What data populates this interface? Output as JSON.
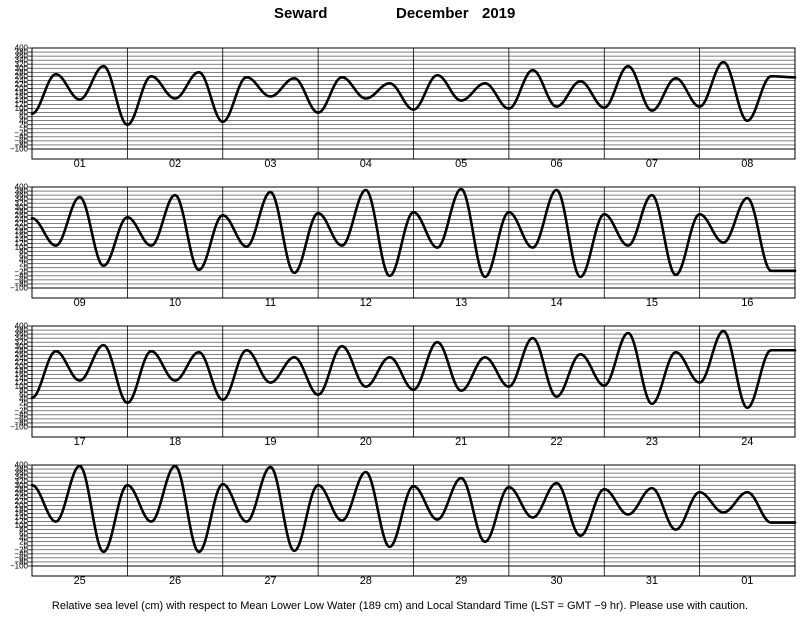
{
  "header": {
    "station": "Seward",
    "month": "December",
    "year": "2019"
  },
  "footnote": "Relative sea level (cm) with respect to Mean Lower Low Water (189 cm) and Local Standard Time (LST = GMT −9 hr). Please use with caution.",
  "chart_data": {
    "type": "line",
    "title": "",
    "xlabel": "",
    "ylabel": "",
    "ylim": [
      -100,
      400
    ],
    "y_ticks": [
      -100,
      -80,
      -60,
      -40,
      -20,
      0,
      20,
      40,
      60,
      80,
      100,
      120,
      140,
      160,
      180,
      200,
      220,
      240,
      260,
      280,
      300,
      320,
      340,
      360,
      380,
      400
    ],
    "y_tick_labels": [
      "−100",
      "−80",
      "−60",
      "−40",
      "−20",
      "0",
      "20",
      "40",
      "60",
      "80",
      "100",
      "120",
      "140",
      "160",
      "180",
      "200",
      "220",
      "240",
      "260",
      "280",
      "300",
      "320",
      "340",
      "360",
      "380",
      "400"
    ],
    "grid": true,
    "days_per_panel": 8,
    "x_unit": "day-of-month",
    "panels": [
      {
        "day_labels": [
          "01",
          "02",
          "03",
          "04",
          "05",
          "06",
          "07",
          "08"
        ],
        "series": {
          "x": [
            0.0,
            0.25,
            0.5,
            0.75,
            1.0,
            1.25,
            1.5,
            1.75,
            2.0,
            2.25,
            2.5,
            2.75,
            3.0,
            3.25,
            3.5,
            3.75,
            4.0,
            4.25,
            4.5,
            4.75,
            5.0,
            5.25,
            5.5,
            5.75,
            6.0,
            6.25,
            6.5,
            6.75,
            7.0,
            7.25,
            7.5,
            7.75,
            8.0
          ],
          "y": [
            75,
            270,
            145,
            310,
            20,
            260,
            150,
            280,
            35,
            255,
            160,
            250,
            80,
            255,
            150,
            225,
            95,
            265,
            140,
            225,
            100,
            290,
            110,
            235,
            105,
            310,
            90,
            250,
            110,
            330,
            40,
            260,
            255
          ]
        }
      },
      {
        "day_labels": [
          "09",
          "10",
          "11",
          "12",
          "13",
          "14",
          "15",
          "16"
        ],
        "series": {
          "x": [
            0.0,
            0.25,
            0.5,
            0.75,
            1.0,
            1.25,
            1.5,
            1.75,
            2.0,
            2.25,
            2.5,
            2.75,
            3.0,
            3.25,
            3.5,
            3.75,
            4.0,
            4.25,
            4.5,
            4.75,
            5.0,
            5.25,
            5.5,
            5.75,
            6.0,
            6.25,
            6.5,
            6.75,
            7.0,
            7.25,
            7.5,
            7.75,
            8.0
          ],
          "y": [
            245,
            110,
            350,
            10,
            250,
            110,
            360,
            -10,
            260,
            105,
            375,
            -25,
            270,
            110,
            385,
            -40,
            275,
            100,
            390,
            -45,
            275,
            100,
            385,
            -45,
            265,
            110,
            360,
            -35,
            265,
            125,
            345,
            -15,
            -15
          ]
        }
      },
      {
        "day_labels": [
          "17",
          "18",
          "19",
          "20",
          "21",
          "22",
          "23",
          "24"
        ],
        "series": {
          "x": [
            0.0,
            0.25,
            0.5,
            0.75,
            1.0,
            1.25,
            1.5,
            1.75,
            2.0,
            2.25,
            2.5,
            2.75,
            3.0,
            3.25,
            3.5,
            3.75,
            4.0,
            4.25,
            4.5,
            4.75,
            5.0,
            5.25,
            5.5,
            5.75,
            6.0,
            6.25,
            6.5,
            6.75,
            7.0,
            7.25,
            7.5,
            7.75,
            8.0
          ],
          "y": [
            45,
            275,
            130,
            305,
            20,
            275,
            130,
            270,
            35,
            280,
            120,
            245,
            60,
            300,
            100,
            245,
            85,
            320,
            80,
            245,
            100,
            340,
            50,
            260,
            105,
            365,
            15,
            270,
            120,
            375,
            -5,
            280,
            280
          ]
        }
      },
      {
        "day_labels": [
          "25",
          "26",
          "27",
          "28",
          "29",
          "30",
          "31",
          "01"
        ],
        "series": {
          "x": [
            0.0,
            0.25,
            0.5,
            0.75,
            1.0,
            1.25,
            1.5,
            1.75,
            2.0,
            2.25,
            2.5,
            2.75,
            3.0,
            3.25,
            3.5,
            3.75,
            4.0,
            4.25,
            4.5,
            4.75,
            5.0,
            5.25,
            5.5,
            5.75,
            6.0,
            6.25,
            6.5,
            6.75,
            7.0,
            7.25,
            7.5,
            7.75,
            8.0
          ],
          "y": [
            300,
            120,
            395,
            -30,
            300,
            120,
            395,
            -30,
            305,
            120,
            390,
            -25,
            300,
            125,
            365,
            -5,
            295,
            130,
            335,
            20,
            290,
            140,
            310,
            50,
            280,
            155,
            285,
            80,
            265,
            165,
            265,
            115,
            115
          ]
        }
      }
    ]
  }
}
